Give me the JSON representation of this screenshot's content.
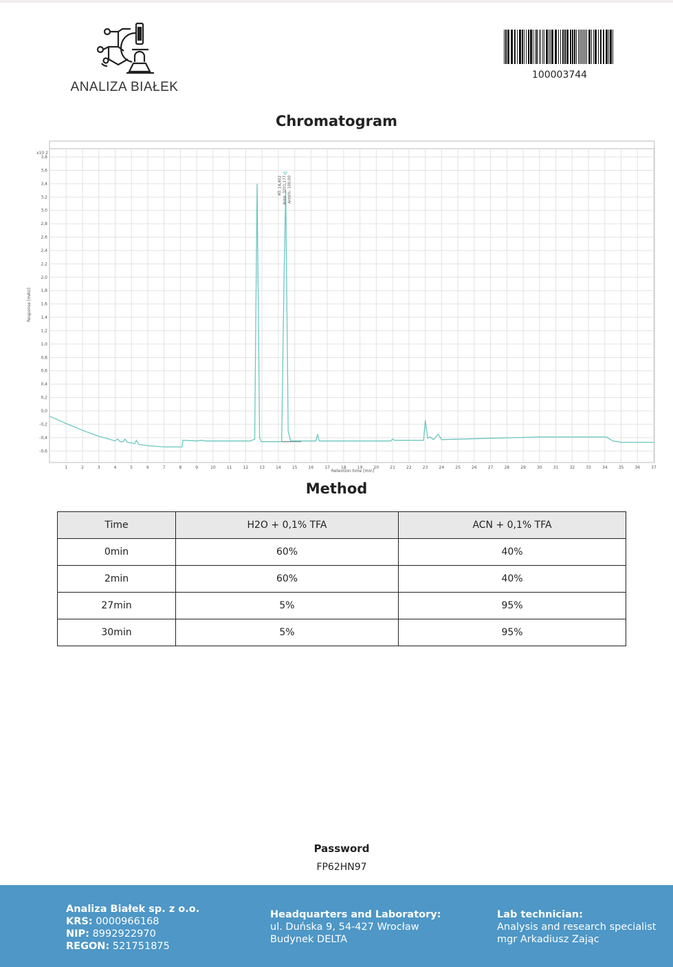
{
  "logo": {
    "text": "ANALIZA BIAŁEK"
  },
  "barcode": {
    "number": "100003744"
  },
  "chromatogram_title": "Chromatogram",
  "chart_data": {
    "type": "line",
    "title": "",
    "xlabel": "Retention time [min]",
    "ylabel": "Response [mAU]",
    "y_multiplier": "x10 2",
    "xlim": [
      0,
      37
    ],
    "ylim": [
      -0.77,
      3.93
    ],
    "x_ticks": [
      1,
      2,
      3,
      4,
      5,
      6,
      7,
      8,
      9,
      10,
      11,
      12,
      13,
      14,
      15,
      16,
      17,
      18,
      19,
      20,
      21,
      22,
      23,
      24,
      25,
      26,
      27,
      28,
      29,
      30,
      31,
      32,
      33,
      34,
      35,
      36,
      37
    ],
    "y_ticks": [
      "3,8",
      "3,6",
      "3,4",
      "3,2",
      "3,0",
      "2,8",
      "2,6",
      "2,4",
      "2,2",
      "2,0",
      "1,8",
      "1,6",
      "1,4",
      "1,2",
      "1,0",
      "0,8",
      "0,6",
      "0,4",
      "0,2",
      "0,0",
      "-0,2",
      "-0,4",
      "-0,6"
    ],
    "grid": true,
    "line_color": "#6cc7c0",
    "series": [
      {
        "x": [
          0,
          1,
          2,
          3,
          3.6,
          4.0,
          4.15,
          4.3,
          4.5,
          4.6,
          4.75,
          5.0,
          5.2,
          5.3,
          5.45,
          6,
          7,
          8.1,
          8.15,
          9,
          9.3,
          9.5,
          12.3,
          12.55,
          12.7,
          12.85,
          12.95,
          14.2,
          14.35,
          14.45,
          14.6,
          14.75,
          16.3,
          16.4,
          16.5,
          20.9,
          21,
          21.1,
          22.9,
          23.0,
          23.15,
          23.3,
          23.5,
          23.8,
          24,
          27,
          30,
          34.1,
          34.5,
          35,
          37
        ],
        "y": [
          -0.08,
          -0.19,
          -0.29,
          -0.38,
          -0.42,
          -0.45,
          -0.42,
          -0.46,
          -0.46,
          -0.42,
          -0.47,
          -0.48,
          -0.49,
          -0.44,
          -0.5,
          -0.52,
          -0.54,
          -0.54,
          -0.44,
          -0.45,
          -0.44,
          -0.45,
          -0.45,
          -0.42,
          3.4,
          -0.4,
          -0.46,
          -0.46,
          2.0,
          3.3,
          -0.3,
          -0.45,
          -0.45,
          -0.35,
          -0.45,
          -0.45,
          -0.42,
          -0.44,
          -0.44,
          -0.14,
          -0.41,
          -0.39,
          -0.43,
          -0.35,
          -0.43,
          -0.41,
          -0.39,
          -0.39,
          -0.45,
          -0.47,
          -0.47
        ]
      }
    ],
    "baseline": {
      "x": [
        14.2,
        15.4
      ],
      "y": -0.46
    },
    "peak_annotation": {
      "x": 14.402,
      "lines": [
        "RT: 14,402",
        "Area: 3201,177",
        "Area%: 100,00"
      ]
    }
  },
  "method": {
    "title": "Method",
    "headers": [
      "Time",
      "H2O + 0,1% TFA",
      "ACN + 0,1% TFA"
    ],
    "rows": [
      [
        "0min",
        "60%",
        "40%"
      ],
      [
        "2min",
        "60%",
        "40%"
      ],
      [
        "27min",
        "5%",
        "95%"
      ],
      [
        "30min",
        "5%",
        "95%"
      ]
    ]
  },
  "password": {
    "label": "Password",
    "value": "FP62HN97"
  },
  "footer": {
    "company": "Analiza Białek sp. z o.o.",
    "krs_label": "KRS:",
    "krs": "0000966168",
    "nip_label": "NIP:",
    "nip": "8992922970",
    "regon_label": "REGON:",
    "regon": "521751875",
    "hq_title": "Headquarters and Laboratory:",
    "hq_line1": "ul. Duńska 9, 54-427 Wrocław",
    "hq_line2": "Budynek DELTA",
    "tech_title": "Lab technician:",
    "tech_line1": "Analysis and research specialist",
    "tech_line2": "mgr Arkadiusz Zając"
  }
}
